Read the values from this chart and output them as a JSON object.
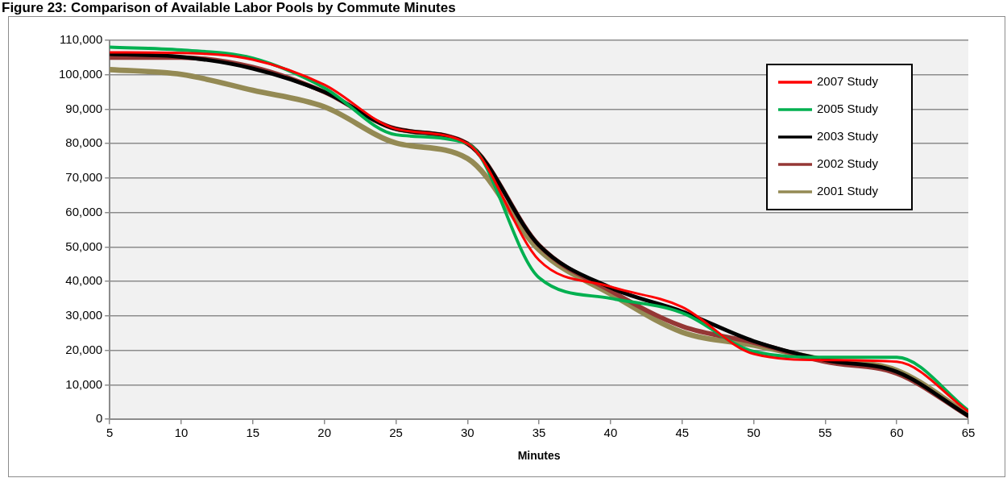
{
  "chart_data": {
    "type": "line",
    "title": "Figure 23: Comparison of Available Labor Pools by Commute Minutes",
    "xlabel": "Minutes",
    "x": [
      5,
      10,
      15,
      20,
      25,
      30,
      35,
      40,
      45,
      50,
      55,
      60,
      65
    ],
    "xlim": [
      5,
      65
    ],
    "xticks": [
      5,
      10,
      15,
      20,
      25,
      30,
      35,
      40,
      45,
      50,
      55,
      60,
      65
    ],
    "ylim": [
      0,
      110000
    ],
    "yticks": [
      0,
      {
        "value": 10000,
        "label": "10,000"
      },
      {
        "value": 20000,
        "label": "20,000"
      },
      {
        "value": 30000,
        "label": "30,000"
      },
      {
        "value": 40000,
        "label": "40,000"
      },
      {
        "value": 50000,
        "label": "50,000"
      },
      {
        "value": 60000,
        "label": "60,000"
      },
      {
        "value": 70000,
        "label": "70,000"
      },
      {
        "value": 80000,
        "label": "80,000"
      },
      {
        "value": 90000,
        "label": "90,000"
      },
      {
        "value": 100000,
        "label": "100,000"
      },
      {
        "value": 110000,
        "label": "110,000"
      }
    ],
    "grid": "y",
    "legend": "top right",
    "marker": "none",
    "line_style": "solid",
    "series": [
      {
        "name": "2007 Study",
        "color": "#ff0000",
        "values": [
          106500,
          106300,
          104400,
          97100,
          84300,
          80000,
          46200,
          38500,
          32600,
          19000,
          17200,
          16700,
          2300
        ]
      },
      {
        "name": "2005 Study",
        "color": "#00b050",
        "values": [
          108000,
          107200,
          104800,
          96200,
          82600,
          80000,
          41100,
          35100,
          30900,
          19700,
          18000,
          18000,
          2600
        ]
      },
      {
        "name": "2003 Study",
        "color": "#000000",
        "values": [
          106000,
          105200,
          101800,
          95000,
          84300,
          80000,
          50500,
          38200,
          31300,
          22700,
          17200,
          13800,
          1000
        ]
      },
      {
        "name": "2002 Study",
        "color": "#953735",
        "values": [
          105000,
          105000,
          102200,
          95000,
          84300,
          80000,
          50500,
          37300,
          27000,
          22300,
          16700,
          13300,
          1000
        ]
      },
      {
        "name": "2001 Study",
        "color": "#948a54",
        "values": [
          101500,
          100100,
          95500,
          90700,
          80200,
          75700,
          49200,
          36400,
          25300,
          21500,
          17200,
          14200,
          1400
        ]
      }
    ]
  }
}
